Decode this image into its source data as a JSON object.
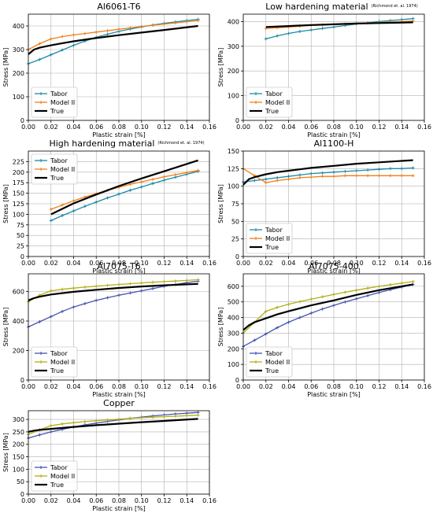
{
  "figure": {
    "colors": {
      "teal": "#1b8aa4",
      "orange": "#f07f1b",
      "olive": "#b4ad16",
      "blue": "#4455b0",
      "black": "#000000"
    }
  },
  "chart_data": [
    {
      "type": "line",
      "title": "Al6061-T6",
      "title_note": "",
      "xlabel": "Plastic strain [%]",
      "ylabel": "Stress [MPa]",
      "xlim": [
        0,
        0.16
      ],
      "ylim": [
        0,
        450
      ],
      "xticks": [
        "0.00",
        "0.02",
        "0.04",
        "0.06",
        "0.08",
        "0.10",
        "0.12",
        "0.14",
        "0.16"
      ],
      "yticks": [
        "0",
        "100",
        "200",
        "300",
        "400"
      ],
      "ytick_values": [
        0,
        100,
        200,
        300,
        400
      ],
      "grid": true,
      "legend_position": "lower-left",
      "series": [
        {
          "name": "Tabor",
          "color": "#1b8aa4",
          "marker": true,
          "x": [
            0,
            0.01,
            0.02,
            0.03,
            0.04,
            0.05,
            0.06,
            0.07,
            0.08,
            0.09,
            0.1,
            0.11,
            0.12,
            0.13,
            0.14,
            0.15
          ],
          "y": [
            240,
            258,
            278,
            298,
            318,
            336,
            352,
            365,
            377,
            387,
            396,
            404,
            411,
            417,
            423,
            428
          ]
        },
        {
          "name": "Model II",
          "color": "#f07f1b",
          "marker": true,
          "x": [
            0,
            0.01,
            0.02,
            0.03,
            0.04,
            0.05,
            0.06,
            0.07,
            0.08,
            0.09,
            0.1,
            0.11,
            0.12,
            0.13,
            0.14,
            0.15
          ],
          "y": [
            300,
            325,
            345,
            355,
            362,
            368,
            374,
            380,
            386,
            392,
            398,
            403,
            408,
            413,
            418,
            423
          ]
        },
        {
          "name": "True",
          "color": "#000000",
          "marker": false,
          "width": 2.2,
          "x": [
            0,
            0.005,
            0.01,
            0.02,
            0.03,
            0.04,
            0.05,
            0.06,
            0.08,
            0.1,
            0.12,
            0.15
          ],
          "y": [
            280,
            300,
            308,
            318,
            327,
            335,
            342,
            349,
            361,
            372,
            383,
            400
          ]
        }
      ]
    },
    {
      "type": "line",
      "title": "Low hardening material",
      "title_note": "(Richmond et. al. 1974)",
      "xlabel": "Plastic strain [%]",
      "ylabel": "Stress [MPa]",
      "xlim": [
        0,
        0.16
      ],
      "ylim": [
        0,
        430
      ],
      "xticks": [
        "0.00",
        "0.02",
        "0.04",
        "0.06",
        "0.08",
        "0.10",
        "0.12",
        "0.14",
        "0.16"
      ],
      "yticks": [
        "0",
        "100",
        "200",
        "300",
        "400"
      ],
      "ytick_values": [
        0,
        100,
        200,
        300,
        400
      ],
      "grid": true,
      "legend_position": "lower-left",
      "series": [
        {
          "name": "Tabor",
          "color": "#1b8aa4",
          "marker": true,
          "x": [
            0.02,
            0.03,
            0.04,
            0.05,
            0.06,
            0.07,
            0.08,
            0.09,
            0.1,
            0.11,
            0.12,
            0.13,
            0.14,
            0.15
          ],
          "y": [
            330,
            342,
            352,
            360,
            366,
            372,
            378,
            384,
            390,
            395,
            400,
            404,
            408,
            412
          ]
        },
        {
          "name": "Model II",
          "color": "#f07f1b",
          "marker": true,
          "x": [
            0.02,
            0.03,
            0.04,
            0.05,
            0.06,
            0.07,
            0.08,
            0.09,
            0.1,
            0.11,
            0.12,
            0.13,
            0.14,
            0.15
          ],
          "y": [
            372,
            375,
            378,
            381,
            384,
            386,
            388,
            390,
            392,
            394,
            396,
            398,
            400,
            402
          ]
        },
        {
          "name": "True",
          "color": "#000000",
          "marker": false,
          "width": 2.2,
          "x": [
            0.02,
            0.04,
            0.06,
            0.08,
            0.1,
            0.12,
            0.15
          ],
          "y": [
            378,
            382,
            386,
            389,
            392,
            394,
            397
          ]
        }
      ]
    },
    {
      "type": "line",
      "title": "High hardening material",
      "title_note": "(Richmond et. al. 1974)",
      "xlabel": "Plastic strain [%]",
      "ylabel": "Stress [MPa]",
      "xlim": [
        0,
        0.16
      ],
      "ylim": [
        0,
        250
      ],
      "xticks": [
        "0.00",
        "0.02",
        "0.04",
        "0.06",
        "0.08",
        "0.10",
        "0.12",
        "0.14",
        "0.16"
      ],
      "yticks": [
        "0",
        "25",
        "50",
        "75",
        "100",
        "125",
        "150",
        "175",
        "200",
        "225"
      ],
      "ytick_values": [
        0,
        25,
        50,
        75,
        100,
        125,
        150,
        175,
        200,
        225
      ],
      "grid": true,
      "legend_position": "upper-left",
      "series": [
        {
          "name": "Tabor",
          "color": "#1b8aa4",
          "marker": true,
          "x": [
            0.02,
            0.03,
            0.04,
            0.05,
            0.06,
            0.07,
            0.08,
            0.09,
            0.1,
            0.11,
            0.12,
            0.13,
            0.14,
            0.15
          ],
          "y": [
            85,
            97,
            108,
            119,
            129,
            139,
            148,
            157,
            165,
            173,
            181,
            188,
            195,
            202
          ]
        },
        {
          "name": "Model II",
          "color": "#f07f1b",
          "marker": true,
          "x": [
            0.02,
            0.03,
            0.04,
            0.05,
            0.06,
            0.07,
            0.08,
            0.09,
            0.1,
            0.11,
            0.12,
            0.13,
            0.14,
            0.15
          ],
          "y": [
            112,
            122,
            132,
            141,
            149,
            157,
            164,
            171,
            177,
            183,
            189,
            194,
            199,
            204
          ]
        },
        {
          "name": "True",
          "color": "#000000",
          "marker": false,
          "width": 2.2,
          "x": [
            0.02,
            0.04,
            0.06,
            0.08,
            0.1,
            0.12,
            0.15
          ],
          "y": [
            100,
            126,
            147,
            167,
            185,
            202,
            228
          ]
        }
      ]
    },
    {
      "type": "line",
      "title": "Al1100-H",
      "title_note": "",
      "xlabel": "Plastic strain [%]",
      "ylabel": "Stress [MPa]",
      "xlim": [
        0,
        0.16
      ],
      "ylim": [
        0,
        150
      ],
      "xticks": [
        "0.00",
        "0.02",
        "0.04",
        "0.06",
        "0.08",
        "0.10",
        "0.12",
        "0.14",
        "0.16"
      ],
      "yticks": [
        "0",
        "25",
        "50",
        "75",
        "100",
        "125",
        "150"
      ],
      "ytick_values": [
        0,
        25,
        50,
        75,
        100,
        125,
        150
      ],
      "grid": true,
      "legend_position": "lower-left",
      "series": [
        {
          "name": "Tabor",
          "color": "#1b8aa4",
          "marker": true,
          "x": [
            0,
            0.01,
            0.02,
            0.03,
            0.04,
            0.05,
            0.06,
            0.07,
            0.08,
            0.09,
            0.1,
            0.11,
            0.12,
            0.13,
            0.14,
            0.15
          ],
          "y": [
            106,
            108,
            110,
            112,
            114,
            116,
            118,
            119,
            120,
            121,
            122,
            123,
            124,
            125,
            125,
            126
          ]
        },
        {
          "name": "Model II",
          "color": "#f07f1b",
          "marker": true,
          "x": [
            0,
            0.01,
            0.02,
            0.03,
            0.04,
            0.05,
            0.06,
            0.07,
            0.08,
            0.09,
            0.1,
            0.11,
            0.12,
            0.13,
            0.14,
            0.15
          ],
          "y": [
            125,
            115,
            105,
            108,
            110,
            112,
            113,
            114,
            114,
            115,
            115,
            115,
            115,
            115,
            115,
            115
          ]
        },
        {
          "name": "True",
          "color": "#000000",
          "marker": false,
          "width": 2.2,
          "x": [
            0,
            0.005,
            0.01,
            0.02,
            0.03,
            0.04,
            0.06,
            0.08,
            0.1,
            0.12,
            0.15
          ],
          "y": [
            102,
            110,
            113,
            117,
            120,
            122,
            126,
            129,
            132,
            134,
            137
          ]
        }
      ]
    },
    {
      "type": "line",
      "title": "Al7075-T6",
      "title_note": "",
      "xlabel": "Plastic strain [%]",
      "ylabel": "Stress [MPa]",
      "xlim": [
        0,
        0.16
      ],
      "ylim": [
        0,
        720
      ],
      "xticks": [
        "0.00",
        "0.02",
        "0.04",
        "0.06",
        "0.08",
        "0.10",
        "0.12",
        "0.14",
        "0.16"
      ],
      "yticks": [
        "0",
        "200",
        "400",
        "600"
      ],
      "ytick_values": [
        0,
        200,
        400,
        600
      ],
      "grid": true,
      "legend_position": "lower-left",
      "series": [
        {
          "name": "Tabor",
          "color": "#4455b0",
          "marker": true,
          "x": [
            0,
            0.01,
            0.02,
            0.03,
            0.04,
            0.05,
            0.06,
            0.07,
            0.08,
            0.09,
            0.1,
            0.11,
            0.12,
            0.13,
            0.14,
            0.15
          ],
          "y": [
            360,
            395,
            430,
            465,
            495,
            518,
            540,
            558,
            575,
            590,
            605,
            620,
            635,
            648,
            660,
            670
          ]
        },
        {
          "name": "Model II",
          "color": "#b4ad16",
          "marker": true,
          "x": [
            0,
            0.01,
            0.02,
            0.03,
            0.04,
            0.05,
            0.06,
            0.07,
            0.08,
            0.09,
            0.1,
            0.11,
            0.12,
            0.13,
            0.14,
            0.15
          ],
          "y": [
            530,
            575,
            605,
            615,
            623,
            630,
            636,
            642,
            648,
            653,
            658,
            663,
            667,
            671,
            675,
            680
          ]
        },
        {
          "name": "True",
          "color": "#000000",
          "marker": false,
          "width": 2.2,
          "x": [
            0,
            0.005,
            0.01,
            0.02,
            0.04,
            0.06,
            0.08,
            0.1,
            0.12,
            0.15
          ],
          "y": [
            540,
            555,
            565,
            580,
            598,
            612,
            624,
            634,
            642,
            652
          ]
        }
      ]
    },
    {
      "type": "line",
      "title": "Al7075-400",
      "title_note": "",
      "xlabel": "Plastic strain [%]",
      "ylabel": "Stress [MPa]",
      "xlim": [
        0,
        0.16
      ],
      "ylim": [
        0,
        680
      ],
      "xticks": [
        "0.00",
        "0.02",
        "0.04",
        "0.06",
        "0.08",
        "0.10",
        "0.12",
        "0.14",
        "0.16"
      ],
      "yticks": [
        "0",
        "100",
        "200",
        "300",
        "400",
        "500",
        "600"
      ],
      "ytick_values": [
        0,
        100,
        200,
        300,
        400,
        500,
        600
      ],
      "grid": true,
      "legend_position": "lower-left",
      "series": [
        {
          "name": "Tabor",
          "color": "#4455b0",
          "marker": true,
          "x": [
            0,
            0.01,
            0.02,
            0.03,
            0.04,
            0.05,
            0.06,
            0.07,
            0.08,
            0.09,
            0.1,
            0.11,
            0.12,
            0.13,
            0.14,
            0.15
          ],
          "y": [
            215,
            255,
            295,
            335,
            370,
            400,
            428,
            455,
            478,
            500,
            520,
            540,
            560,
            578,
            595,
            612
          ]
        },
        {
          "name": "Model II",
          "color": "#b4ad16",
          "marker": true,
          "x": [
            0,
            0.01,
            0.02,
            0.03,
            0.04,
            0.05,
            0.06,
            0.07,
            0.08,
            0.09,
            0.1,
            0.11,
            0.12,
            0.13,
            0.14,
            0.15
          ],
          "y": [
            300,
            370,
            440,
            465,
            485,
            502,
            518,
            533,
            548,
            562,
            575,
            588,
            600,
            610,
            620,
            630
          ]
        },
        {
          "name": "True",
          "color": "#000000",
          "marker": false,
          "width": 2.2,
          "x": [
            0,
            0.005,
            0.01,
            0.02,
            0.03,
            0.04,
            0.06,
            0.08,
            0.1,
            0.12,
            0.15
          ],
          "y": [
            320,
            350,
            370,
            395,
            420,
            440,
            478,
            510,
            545,
            575,
            612
          ]
        }
      ]
    },
    {
      "type": "line",
      "title": "Copper",
      "title_note": "",
      "xlabel": "Plastic strain [%]",
      "ylabel": "Stress [MPa]",
      "xlim": [
        0,
        0.16
      ],
      "ylim": [
        0,
        335
      ],
      "xticks": [
        "0.00",
        "0.02",
        "0.04",
        "0.06",
        "0.08",
        "0.10",
        "0.12",
        "0.14",
        "0.16"
      ],
      "yticks": [
        "0",
        "50",
        "100",
        "150",
        "200",
        "250",
        "300"
      ],
      "ytick_values": [
        0,
        50,
        100,
        150,
        200,
        250,
        300
      ],
      "grid": true,
      "legend_position": "lower-left",
      "series": [
        {
          "name": "Tabor",
          "color": "#4455b0",
          "marker": true,
          "x": [
            0,
            0.01,
            0.02,
            0.03,
            0.04,
            0.05,
            0.06,
            0.07,
            0.08,
            0.09,
            0.1,
            0.11,
            0.12,
            0.13,
            0.14,
            0.15
          ],
          "y": [
            225,
            238,
            250,
            260,
            270,
            278,
            285,
            292,
            298,
            304,
            309,
            314,
            318,
            322,
            325,
            328
          ]
        },
        {
          "name": "Model II",
          "color": "#b4ad16",
          "marker": true,
          "x": [
            0,
            0.01,
            0.02,
            0.03,
            0.04,
            0.05,
            0.06,
            0.07,
            0.08,
            0.09,
            0.1,
            0.11,
            0.12,
            0.13,
            0.14,
            0.15
          ],
          "y": [
            240,
            258,
            275,
            282,
            287,
            291,
            295,
            298,
            301,
            304,
            307,
            309,
            311,
            313,
            315,
            317
          ]
        },
        {
          "name": "True",
          "color": "#000000",
          "marker": false,
          "width": 2.2,
          "x": [
            0,
            0.005,
            0.01,
            0.02,
            0.04,
            0.06,
            0.08,
            0.1,
            0.12,
            0.15
          ],
          "y": [
            250,
            255,
            258,
            262,
            270,
            277,
            283,
            289,
            294,
            302
          ]
        }
      ]
    }
  ]
}
